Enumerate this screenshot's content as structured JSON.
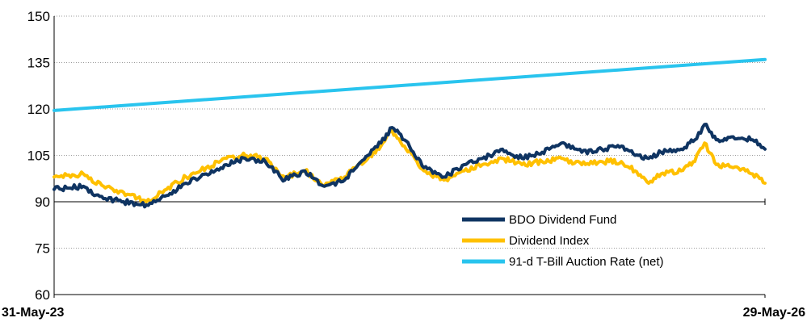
{
  "chart_data": {
    "type": "line",
    "title": "",
    "xlabel": "",
    "ylabel": "",
    "ylim": [
      60,
      150
    ],
    "yticks": [
      60,
      75,
      90,
      105,
      120,
      135,
      150
    ],
    "ytick_labels": [
      "60",
      "75",
      "90",
      "105",
      "120",
      "135",
      "150"
    ],
    "x_range": [
      "2023-05-31",
      "2026-05-29"
    ],
    "xtick_labels": [
      "31-May-23",
      "29-May-26"
    ],
    "grid": "horizontal dotted",
    "legend_position": "bottom-right",
    "series": [
      {
        "name": "BDO Dividend Fund",
        "color": "#0f3462",
        "x": [
          "2023-05-31",
          "2023-07-15",
          "2023-08-15",
          "2023-09-15",
          "2023-10-20",
          "2023-11-20",
          "2023-12-20",
          "2024-01-20",
          "2024-02-20",
          "2024-03-20",
          "2024-04-20",
          "2024-05-20",
          "2024-06-20",
          "2024-07-20",
          "2024-08-20",
          "2024-09-10",
          "2024-09-25",
          "2024-10-15",
          "2024-11-01",
          "2024-11-20",
          "2024-12-20",
          "2025-01-20",
          "2025-02-20",
          "2025-03-20",
          "2025-04-20",
          "2025-05-20",
          "2025-06-20",
          "2025-07-20",
          "2025-08-20",
          "2025-09-20",
          "2025-10-20",
          "2025-11-10",
          "2025-12-01",
          "2025-12-20",
          "2026-01-20",
          "2026-02-10",
          "2026-02-25",
          "2026-03-15",
          "2026-04-10",
          "2026-05-10",
          "2026-05-29"
        ],
        "values": [
          94,
          95,
          91,
          90,
          89,
          92,
          96,
          99,
          102,
          104,
          103,
          97,
          100,
          95,
          97,
          102,
          105,
          109,
          114,
          110,
          101,
          98,
          102,
          104,
          107,
          104,
          106,
          109,
          106,
          107,
          108,
          105,
          104,
          106,
          107,
          110,
          115,
          110,
          111,
          110,
          107
        ]
      },
      {
        "name": "Dividend Index",
        "color": "#ffc000",
        "x": [
          "2023-05-31",
          "2023-07-15",
          "2023-08-15",
          "2023-09-15",
          "2023-10-20",
          "2023-11-20",
          "2023-12-20",
          "2024-01-20",
          "2024-02-20",
          "2024-03-20",
          "2024-04-20",
          "2024-05-20",
          "2024-06-20",
          "2024-07-20",
          "2024-08-20",
          "2024-09-10",
          "2024-09-25",
          "2024-10-15",
          "2024-11-01",
          "2024-11-20",
          "2024-12-20",
          "2025-01-20",
          "2025-02-20",
          "2025-03-20",
          "2025-04-20",
          "2025-05-20",
          "2025-06-20",
          "2025-07-20",
          "2025-08-20",
          "2025-09-20",
          "2025-10-20",
          "2025-11-10",
          "2025-12-01",
          "2025-12-20",
          "2026-01-20",
          "2026-02-10",
          "2026-02-25",
          "2026-03-15",
          "2026-04-10",
          "2026-05-10",
          "2026-05-29"
        ],
        "values": [
          98,
          99,
          95,
          93,
          90,
          94,
          98,
          101,
          104,
          105,
          104,
          98,
          100,
          95,
          98,
          102,
          104,
          108,
          113,
          108,
          100,
          97,
          100,
          102,
          104,
          102,
          103,
          104,
          102,
          103,
          103,
          100,
          96,
          99,
          100,
          103,
          109,
          102,
          101,
          99,
          96
        ]
      },
      {
        "name": "91-d T-Bill Auction Rate (net)",
        "color": "#29c4ee",
        "x": [
          "2023-05-31",
          "2026-05-29"
        ],
        "values": [
          119.5,
          136
        ]
      }
    ]
  }
}
